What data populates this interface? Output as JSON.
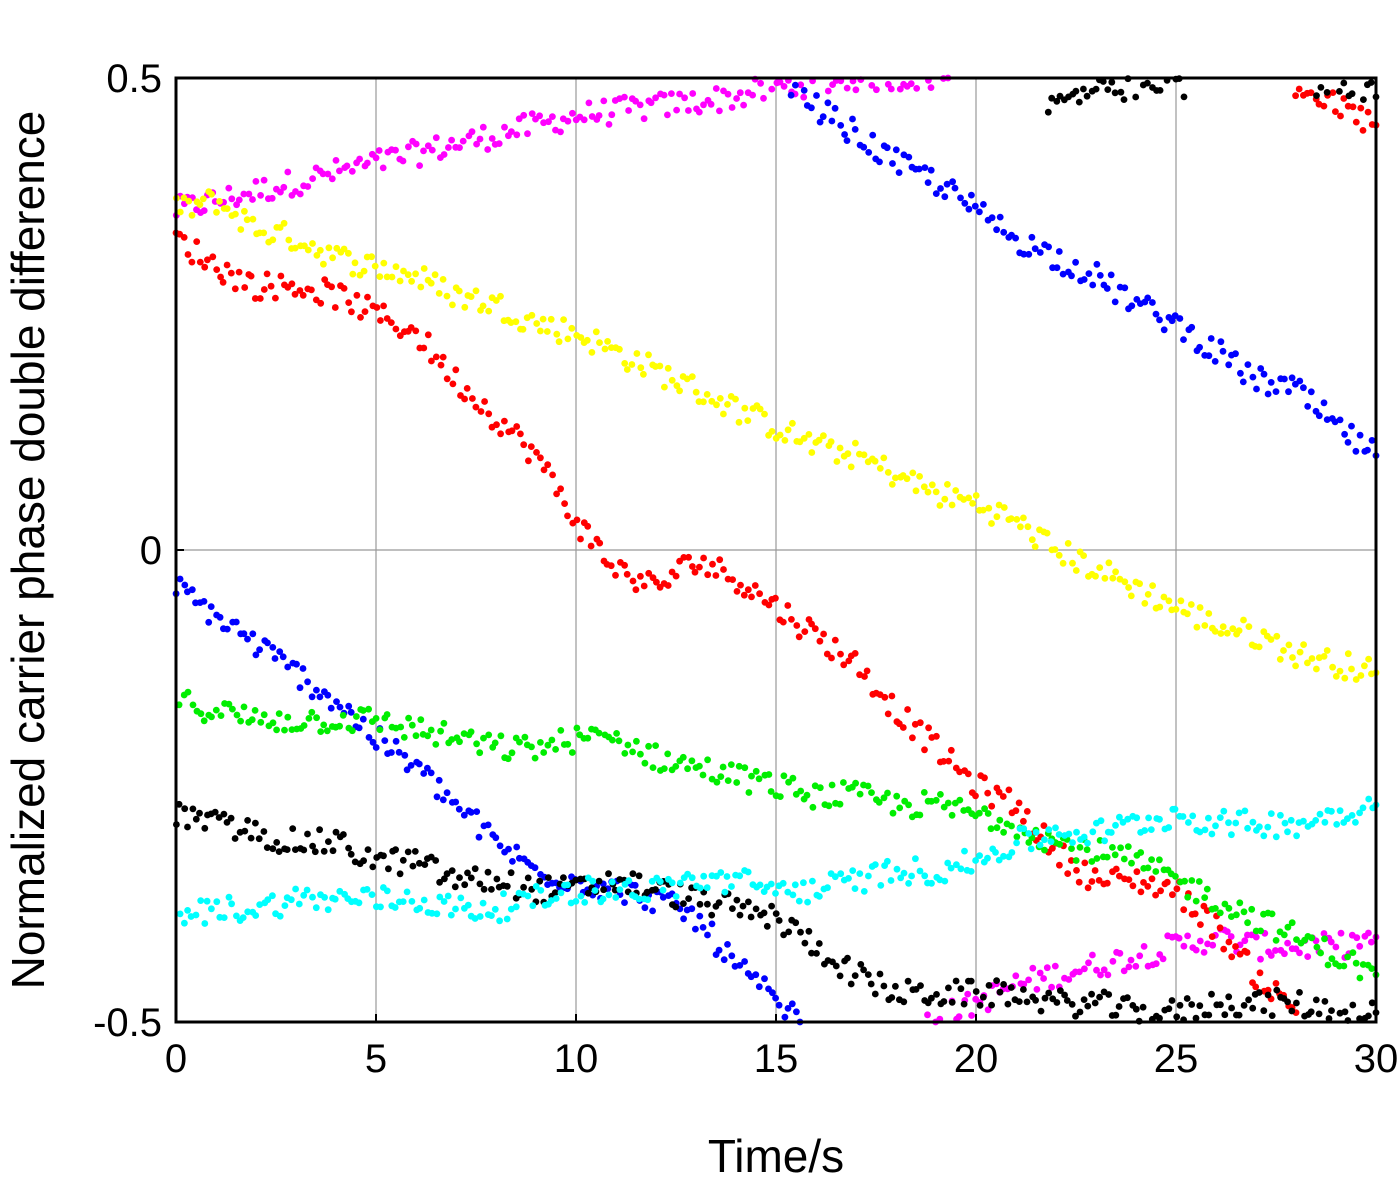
{
  "chart_data": {
    "type": "scatter",
    "title": "",
    "xlabel": "Time/s",
    "ylabel": "Normalized carrier phase double difference",
    "xlim": [
      0,
      30
    ],
    "ylim": [
      -0.5,
      0.5
    ],
    "xticks": [
      "0",
      "5",
      "10",
      "15",
      "20",
      "25",
      "30"
    ],
    "yticks": [
      "-0.5",
      "0",
      "0.5"
    ],
    "grid": true,
    "legend": "none",
    "series": [
      {
        "color": "#ff00ff",
        "segments": [
          {
            "x": [
              0,
              1,
              2,
              3,
              4,
              5,
              6,
              7,
              8,
              9,
              10,
              11,
              12,
              13,
              14,
              15,
              16,
              17,
              18,
              19.3
            ],
            "y": [
              0.36,
              0.37,
              0.38,
              0.39,
              0.4,
              0.41,
              0.42,
              0.43,
              0.44,
              0.45,
              0.46,
              0.465,
              0.47,
              0.475,
              0.48,
              0.49,
              0.495,
              0.5,
              0.5,
              0.5
            ]
          },
          {
            "x": [
              18.8,
              20,
              21,
              22,
              23,
              24,
              25,
              26,
              27,
              28,
              29,
              30
            ],
            "y": [
              -0.5,
              -0.48,
              -0.46,
              -0.45,
              -0.44,
              -0.43,
              -0.42,
              -0.41,
              -0.42,
              -0.42,
              -0.42,
              -0.41
            ]
          }
        ]
      },
      {
        "color": "#ffff00",
        "segments": [
          {
            "x": [
              0,
              1,
              2,
              3,
              4,
              5,
              6,
              7,
              8,
              9,
              10,
              11,
              12,
              13,
              14,
              15,
              16,
              17,
              18,
              19,
              20,
              21,
              22,
              23,
              24,
              25,
              26,
              27,
              28,
              29,
              30
            ],
            "y": [
              0.36,
              0.37,
              0.34,
              0.33,
              0.31,
              0.3,
              0.29,
              0.27,
              0.26,
              0.24,
              0.23,
              0.21,
              0.19,
              0.17,
              0.15,
              0.13,
              0.11,
              0.1,
              0.08,
              0.06,
              0.05,
              0.03,
              0.0,
              -0.02,
              -0.04,
              -0.06,
              -0.08,
              -0.09,
              -0.11,
              -0.12,
              -0.13
            ]
          }
        ]
      },
      {
        "color": "#ff0000",
        "segments": [
          {
            "x": [
              0,
              1,
              2,
              3,
              4,
              5,
              6,
              7,
              8,
              9,
              10,
              11,
              12,
              13,
              14,
              15,
              16,
              17,
              18,
              19,
              20,
              21,
              22,
              23,
              24,
              25,
              26,
              27,
              28
            ],
            "y": [
              0.33,
              0.3,
              0.28,
              0.28,
              0.27,
              0.25,
              0.23,
              0.18,
              0.14,
              0.1,
              0.03,
              -0.02,
              -0.04,
              -0.01,
              -0.03,
              -0.06,
              -0.09,
              -0.12,
              -0.17,
              -0.21,
              -0.25,
              -0.27,
              -0.32,
              -0.35,
              -0.35,
              -0.36,
              -0.4,
              -0.45,
              -0.49
            ]
          },
          {
            "x": [
              28,
              29,
              30
            ],
            "y": [
              0.49,
              0.47,
              0.45
            ]
          }
        ]
      },
      {
        "color": "#0000ff",
        "segments": [
          {
            "x": [
              0,
              1,
              2,
              3,
              4,
              5,
              6,
              7,
              8,
              9,
              10,
              11,
              12,
              13,
              14,
              15,
              15.6
            ],
            "y": [
              -0.04,
              -0.07,
              -0.1,
              -0.13,
              -0.16,
              -0.2,
              -0.23,
              -0.27,
              -0.31,
              -0.34,
              -0.35,
              -0.36,
              -0.37,
              -0.39,
              -0.44,
              -0.48,
              -0.5
            ]
          },
          {
            "x": [
              15.3,
              16,
              17,
              18,
              19,
              20,
              21,
              22,
              23,
              24,
              25,
              26,
              27,
              28,
              29,
              30
            ],
            "y": [
              0.5,
              0.47,
              0.44,
              0.41,
              0.39,
              0.36,
              0.33,
              0.31,
              0.29,
              0.26,
              0.24,
              0.21,
              0.18,
              0.17,
              0.13,
              0.1
            ]
          }
        ]
      },
      {
        "color": "#00ee00",
        "segments": [
          {
            "x": [
              0,
              1,
              2,
              3,
              4,
              5,
              6,
              7,
              8,
              9,
              10,
              11,
              12,
              13,
              14,
              15,
              16,
              17,
              18,
              19,
              20,
              21,
              22,
              23,
              24,
              25,
              26,
              27,
              28,
              29,
              30
            ],
            "y": [
              -0.16,
              -0.17,
              -0.18,
              -0.18,
              -0.18,
              -0.18,
              -0.19,
              -0.2,
              -0.21,
              -0.21,
              -0.2,
              -0.2,
              -0.22,
              -0.23,
              -0.24,
              -0.25,
              -0.26,
              -0.26,
              -0.27,
              -0.27,
              -0.28,
              -0.29,
              -0.31,
              -0.32,
              -0.33,
              -0.35,
              -0.37,
              -0.39,
              -0.41,
              -0.43,
              -0.45
            ]
          }
        ]
      },
      {
        "color": "#000000",
        "segments": [
          {
            "x": [
              0,
              1,
              2,
              3,
              4,
              5,
              6,
              7,
              8,
              9,
              10,
              11,
              12,
              13,
              14,
              15,
              16,
              17,
              18,
              19,
              20,
              21,
              22,
              23,
              24,
              25,
              26,
              27,
              28,
              29,
              30
            ],
            "y": [
              -0.28,
              -0.29,
              -0.3,
              -0.31,
              -0.31,
              -0.33,
              -0.33,
              -0.35,
              -0.35,
              -0.36,
              -0.36,
              -0.35,
              -0.36,
              -0.37,
              -0.38,
              -0.39,
              -0.42,
              -0.45,
              -0.47,
              -0.47,
              -0.47,
              -0.47,
              -0.48,
              -0.48,
              -0.49,
              -0.49,
              -0.48,
              -0.48,
              -0.48,
              -0.49,
              -0.49
            ]
          },
          {
            "x": [
              21.8,
              22.5,
              23,
              23.5,
              24,
              24.5,
              25,
              25.2
            ],
            "y": [
              0.47,
              0.48,
              0.49,
              0.48,
              0.49,
              0.49,
              0.5,
              0.48
            ]
          },
          {
            "x": [
              28.5,
              29,
              29.5,
              30
            ],
            "y": [
              0.49,
              0.5,
              0.49,
              0.48
            ]
          }
        ]
      },
      {
        "color": "#00ffff",
        "segments": [
          {
            "x": [
              0,
              1,
              2,
              3,
              4,
              5,
              6,
              7,
              8,
              9,
              10,
              11,
              12,
              13,
              14,
              15,
              16,
              17,
              18,
              19,
              20,
              21,
              22,
              23,
              24,
              25,
              26,
              27,
              28,
              29,
              30
            ],
            "y": [
              -0.39,
              -0.38,
              -0.38,
              -0.37,
              -0.37,
              -0.37,
              -0.37,
              -0.38,
              -0.38,
              -0.37,
              -0.36,
              -0.36,
              -0.36,
              -0.35,
              -0.35,
              -0.36,
              -0.36,
              -0.35,
              -0.34,
              -0.34,
              -0.33,
              -0.31,
              -0.3,
              -0.3,
              -0.29,
              -0.28,
              -0.29,
              -0.29,
              -0.29,
              -0.28,
              -0.27
            ]
          }
        ]
      }
    ]
  }
}
